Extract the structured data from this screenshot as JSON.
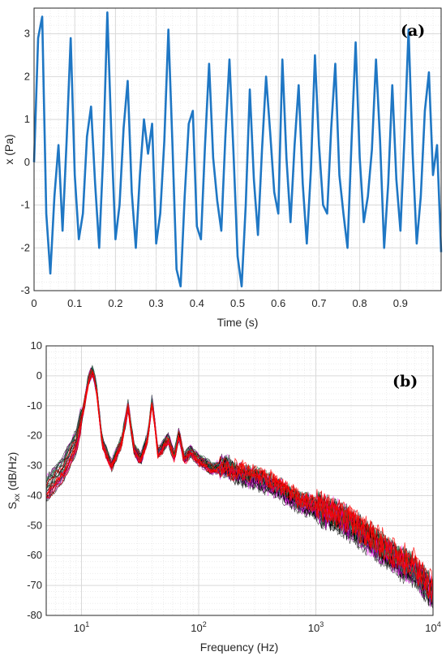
{
  "chart_data": [
    {
      "type": "line",
      "panel_tag": "(a)",
      "xlabel": "Time (s)",
      "ylabel": "x (Pa)",
      "xlim": [
        0,
        1
      ],
      "ylim": [
        -3,
        3.6
      ],
      "xticks": [
        "0",
        "0.1",
        "0.2",
        "0.3",
        "0.4",
        "0.5",
        "0.6",
        "0.7",
        "0.8",
        "0.9"
      ],
      "yticks": [
        "3",
        "2",
        "1",
        "0",
        "-1",
        "-2",
        "-3"
      ],
      "grid": true,
      "minor_grid": true,
      "series_color": "#1f77c4",
      "series": [
        {
          "x": [
            0,
            0.01,
            0.02,
            0.03,
            0.04,
            0.05,
            0.06,
            0.07,
            0.08,
            0.09,
            0.1,
            0.11,
            0.12,
            0.13,
            0.14,
            0.15,
            0.16,
            0.17,
            0.18,
            0.19,
            0.2,
            0.21,
            0.22,
            0.23,
            0.24,
            0.25,
            0.26,
            0.27,
            0.28,
            0.29,
            0.3,
            0.31,
            0.32,
            0.33,
            0.34,
            0.35,
            0.36,
            0.37,
            0.38,
            0.39,
            0.4,
            0.41,
            0.42,
            0.43,
            0.44,
            0.45,
            0.46,
            0.47,
            0.48,
            0.49,
            0.5,
            0.51,
            0.52,
            0.53,
            0.54,
            0.55,
            0.56,
            0.57,
            0.58,
            0.59,
            0.6,
            0.61,
            0.62,
            0.63,
            0.64,
            0.65,
            0.66,
            0.67,
            0.68,
            0.69,
            0.7,
            0.71,
            0.72,
            0.73,
            0.74,
            0.75,
            0.76,
            0.77,
            0.78,
            0.79,
            0.8,
            0.81,
            0.82,
            0.83,
            0.84,
            0.85,
            0.86,
            0.87,
            0.88,
            0.89,
            0.9,
            0.91,
            0.92,
            0.93,
            0.94,
            0.95,
            0.96,
            0.97,
            0.98,
            0.99,
            1.0
          ],
          "y": [
            0.0,
            2.9,
            3.4,
            -1.2,
            -2.6,
            -0.8,
            0.4,
            -1.6,
            0.5,
            2.9,
            -0.3,
            -1.8,
            -1.2,
            0.6,
            1.3,
            -0.5,
            -2.0,
            0.2,
            3.5,
            0.6,
            -1.8,
            -1.0,
            0.8,
            1.9,
            -0.7,
            -2.0,
            -0.3,
            1.0,
            0.2,
            0.9,
            -1.9,
            -1.2,
            0.5,
            3.1,
            0.4,
            -2.5,
            -2.9,
            -0.8,
            0.9,
            1.2,
            -1.5,
            -1.8,
            0.4,
            2.3,
            0.1,
            -0.9,
            -1.6,
            0.6,
            2.4,
            0.2,
            -2.2,
            -2.9,
            -1.0,
            1.7,
            -0.4,
            -1.7,
            0.3,
            2.0,
            0.7,
            -0.7,
            -1.2,
            2.4,
            0.1,
            -1.4,
            0.4,
            1.8,
            -0.5,
            -1.9,
            -0.2,
            2.5,
            0.4,
            -1.0,
            -1.2,
            0.8,
            2.3,
            -0.3,
            -1.2,
            -2.0,
            0.5,
            2.8,
            0.1,
            -1.4,
            -0.8,
            0.3,
            2.4,
            0.5,
            -2.0,
            -0.5,
            1.8,
            -0.4,
            -1.6,
            0.6,
            3.1,
            0.2,
            -1.9,
            -0.8,
            1.2,
            2.1,
            -0.3,
            0.4,
            -2.1
          ]
        }
      ]
    },
    {
      "type": "line",
      "panel_tag": "(b)",
      "xlabel": "Frequency (Hz)",
      "ylabel_main": "S",
      "ylabel_sub": "xx",
      "ylabel_rest": " (dB/Hz)",
      "xscale": "log",
      "xlim": [
        5,
        10000
      ],
      "ylim": [
        -80,
        10
      ],
      "xtick_bases": [
        "10",
        "10",
        "10",
        "10"
      ],
      "xtick_exponents": [
        "1",
        "2",
        "3",
        "4"
      ],
      "xtick_values": [
        10,
        100,
        1000,
        10000
      ],
      "yticks": [
        "10",
        "0",
        "-10",
        "-20",
        "-30",
        "-40",
        "-50",
        "-60",
        "-70",
        "-80"
      ],
      "grid": true,
      "minor_grid": true,
      "series_colors": [
        "#000000",
        "#ff0000",
        "#2e8b57",
        "#ff00ff"
      ],
      "series": [
        {
          "name": "",
          "x": [
            5,
            7,
            9,
            10.5,
            11.5,
            12.5,
            13.5,
            15,
            18,
            22,
            25,
            28,
            32,
            37,
            40,
            45,
            55,
            62,
            68,
            75,
            85,
            100,
            130,
            170,
            220,
            300,
            400,
            500,
            700,
            1000,
            1500,
            2000,
            3000,
            5000,
            7000,
            10000
          ],
          "y": [
            -38,
            -31,
            -22,
            -10,
            -1,
            2,
            -5,
            -22,
            -30,
            -22,
            -10,
            -24,
            -28,
            -20,
            -8,
            -26,
            -21,
            -27,
            -19,
            -28,
            -25,
            -28,
            -31,
            -30,
            -33,
            -34,
            -36,
            -38,
            -42,
            -44,
            -47,
            -50,
            -55,
            -62,
            -65,
            -73
          ]
        }
      ]
    }
  ]
}
